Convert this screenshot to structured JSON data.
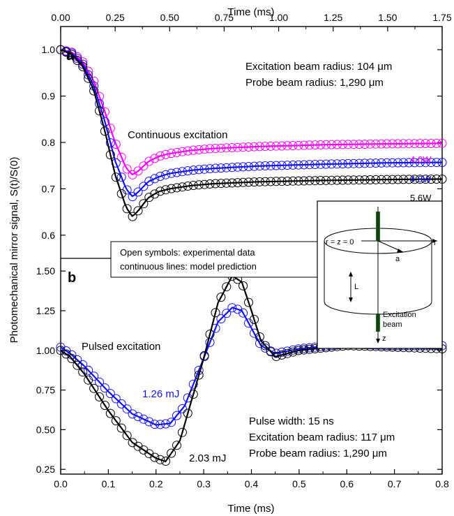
{
  "figure": {
    "y_axis_label": "Photomechanical mirror signal, S(t)/S(0)",
    "x_top_label": "Time (ms)",
    "x_bottom_label": "Time (ms)",
    "legend_line1": "Open symbols: experimental data",
    "legend_line2": "continuous lines: model prediction"
  },
  "inset": {
    "origin_label": "r = z = 0",
    "r_label": "r",
    "a_label": "a",
    "L_label": "L",
    "beam_label_1": "Excitation",
    "beam_label_2": "beam",
    "z_label": "z"
  },
  "colors": {
    "black": "#000000",
    "blue": "#1010ff",
    "magenta": "#ff00ff",
    "beam": "#1e5e1e"
  },
  "chart_data": [
    {
      "panel": "a",
      "type": "line",
      "panel_label": "a",
      "xlabel": "Time (ms)",
      "x_axis_position": "top",
      "xlim": [
        0,
        1.75
      ],
      "ylim": [
        0.55,
        1.05
      ],
      "xticks": [
        "0.00",
        "0.25",
        "0.50",
        "0.75",
        "1.00",
        "1.25",
        "1.50",
        "1.75"
      ],
      "yticks": [
        "0.6",
        "0.7",
        "0.8",
        "0.9",
        "1.0"
      ],
      "annotations": {
        "excitation_radius": "Excitation beam radius: 104 μm",
        "probe_radius": "Probe beam radius: 1,290 μm",
        "mode": "Continuous excitation"
      },
      "series": [
        {
          "name": "4.0W",
          "color": "magenta",
          "x": [
            0,
            0.05,
            0.1,
            0.15,
            0.2,
            0.25,
            0.3,
            0.33,
            0.36,
            0.4,
            0.45,
            0.5,
            0.6,
            0.7,
            0.9,
            1.2,
            1.5,
            1.75
          ],
          "y": [
            1.0,
            0.995,
            0.975,
            0.935,
            0.87,
            0.8,
            0.745,
            0.73,
            0.74,
            0.758,
            0.77,
            0.776,
            0.783,
            0.787,
            0.791,
            0.795,
            0.797,
            0.798
          ]
        },
        {
          "name": "4.8W",
          "color": "blue",
          "x": [
            0,
            0.05,
            0.1,
            0.15,
            0.2,
            0.25,
            0.3,
            0.33,
            0.36,
            0.4,
            0.45,
            0.5,
            0.6,
            0.7,
            0.9,
            1.2,
            1.5,
            1.75
          ],
          "y": [
            1.0,
            0.993,
            0.97,
            0.925,
            0.85,
            0.76,
            0.7,
            0.683,
            0.695,
            0.715,
            0.726,
            0.733,
            0.74,
            0.744,
            0.749,
            0.753,
            0.756,
            0.757
          ]
        },
        {
          "name": "5.6W",
          "color": "black",
          "x": [
            0,
            0.05,
            0.1,
            0.15,
            0.2,
            0.25,
            0.3,
            0.33,
            0.36,
            0.4,
            0.45,
            0.5,
            0.6,
            0.7,
            0.9,
            1.2,
            1.5,
            1.75
          ],
          "y": [
            1.0,
            0.99,
            0.965,
            0.915,
            0.83,
            0.73,
            0.66,
            0.64,
            0.655,
            0.68,
            0.694,
            0.7,
            0.707,
            0.711,
            0.715,
            0.718,
            0.72,
            0.721
          ]
        }
      ]
    },
    {
      "panel": "b",
      "type": "line",
      "panel_label": "b",
      "xlabel": "Time (ms)",
      "x_axis_position": "bottom",
      "xlim": [
        0,
        0.8
      ],
      "ylim": [
        0.22,
        1.58
      ],
      "xticks": [
        "0.0",
        "0.1",
        "0.2",
        "0.3",
        "0.4",
        "0.5",
        "0.6",
        "0.7",
        "0.8"
      ],
      "yticks": [
        "0.25",
        "0.50",
        "0.75",
        "1.00",
        "1.25",
        "1.50"
      ],
      "annotations": {
        "mode": "Pulsed excitation",
        "pulse_width": "Pulse width: 15 ns",
        "excitation_radius": "Excitation beam radius: 117 μm",
        "probe_radius": "Probe beam radius: 1,290 μm"
      },
      "series": [
        {
          "name": "1.26 mJ",
          "color": "blue",
          "x": [
            0,
            0.02,
            0.05,
            0.1,
            0.15,
            0.2,
            0.23,
            0.26,
            0.3,
            0.33,
            0.36,
            0.38,
            0.4,
            0.42,
            0.45,
            0.5,
            0.6,
            0.7,
            0.8
          ],
          "y": [
            1.02,
            0.98,
            0.9,
            0.74,
            0.6,
            0.53,
            0.54,
            0.65,
            0.95,
            1.18,
            1.27,
            1.25,
            1.14,
            1.03,
            0.98,
            1.01,
            1.04,
            1.03,
            1.03
          ]
        },
        {
          "name": "2.03 mJ",
          "color": "black",
          "x": [
            0,
            0.02,
            0.05,
            0.1,
            0.15,
            0.2,
            0.22,
            0.25,
            0.3,
            0.33,
            0.36,
            0.38,
            0.4,
            0.42,
            0.45,
            0.5,
            0.6,
            0.7,
            0.8
          ],
          "y": [
            1.0,
            0.96,
            0.85,
            0.62,
            0.42,
            0.32,
            0.3,
            0.43,
            0.95,
            1.3,
            1.47,
            1.43,
            1.25,
            1.06,
            0.96,
            1.0,
            1.03,
            1.02,
            1.01
          ]
        }
      ]
    }
  ]
}
